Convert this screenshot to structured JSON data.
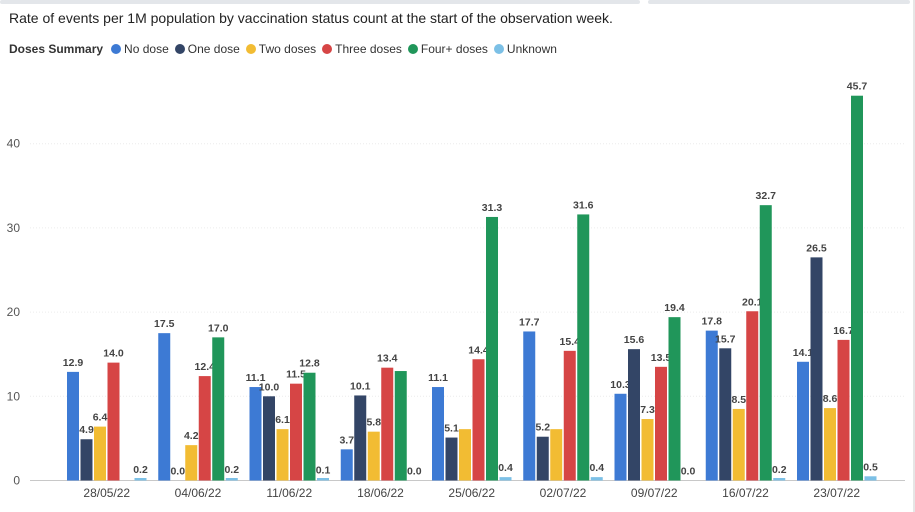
{
  "chart_data": {
    "type": "bar",
    "title": "Rate of events per 1M population by vaccination status count at the start of the observation week.",
    "legend_title": "Doses Summary",
    "legend_placement": "top-left",
    "categories": [
      "28/05/22",
      "04/06/22",
      "11/06/22",
      "18/06/22",
      "25/06/22",
      "02/07/22",
      "09/07/22",
      "16/07/22",
      "23/07/22"
    ],
    "series": [
      {
        "name": "No dose",
        "color": "#3d7ad4",
        "values": [
          12.9,
          17.5,
          11.1,
          3.7,
          11.1,
          17.7,
          10.3,
          17.8,
          14.1
        ],
        "labels": [
          "12.9",
          "17.5",
          "11.1",
          "3.7",
          "11.1",
          "17.7",
          "10.3",
          "17.8",
          "14.1"
        ]
      },
      {
        "name": "One dose",
        "color": "#334566",
        "values": [
          4.9,
          0.0,
          10.0,
          10.1,
          5.1,
          5.2,
          15.6,
          15.7,
          26.5
        ],
        "labels": [
          "4.9",
          "0.0",
          "10.0",
          "10.1",
          "5.1",
          "5.2",
          "15.6",
          "15.7",
          "26.5"
        ]
      },
      {
        "name": "Two doses",
        "color": "#f2bc33",
        "values": [
          6.4,
          4.2,
          6.1,
          5.8,
          6.1,
          6.1,
          7.3,
          8.5,
          8.6
        ],
        "labels": [
          "6.4",
          "4.2",
          "6.1",
          "5.8",
          "",
          "",
          "7.3",
          "8.5",
          "8.6"
        ]
      },
      {
        "name": "Three doses",
        "color": "#d64545",
        "values": [
          14.0,
          12.4,
          11.5,
          13.4,
          14.4,
          15.4,
          13.5,
          20.1,
          16.7
        ],
        "labels": [
          "14.0",
          "12.4",
          "11.5",
          "13.4",
          "14.4",
          "15.4",
          "13.5",
          "20.1",
          "16.7"
        ]
      },
      {
        "name": "Four+ doses",
        "color": "#20965a",
        "values": [
          0,
          17.0,
          12.8,
          13.0,
          31.3,
          31.6,
          19.4,
          32.7,
          45.7
        ],
        "labels": [
          "",
          "17.0",
          "12.8",
          "",
          "31.3",
          "31.6",
          "19.4",
          "32.7",
          "45.7"
        ]
      },
      {
        "name": "Unknown",
        "color": "#7cc0e6",
        "values": [
          0.2,
          0.2,
          0.1,
          0.0,
          0.4,
          0.4,
          0.0,
          0.2,
          0.5
        ],
        "labels": [
          "0.2",
          "0.2",
          "0.1",
          "0.0",
          "0.4",
          "0.4",
          "0.0",
          "0.2",
          "0.5"
        ]
      }
    ],
    "ylim": [
      0,
      48
    ],
    "yticks": [
      0,
      10,
      20,
      30,
      40
    ],
    "grid": true,
    "xlabel": "",
    "ylabel": ""
  }
}
